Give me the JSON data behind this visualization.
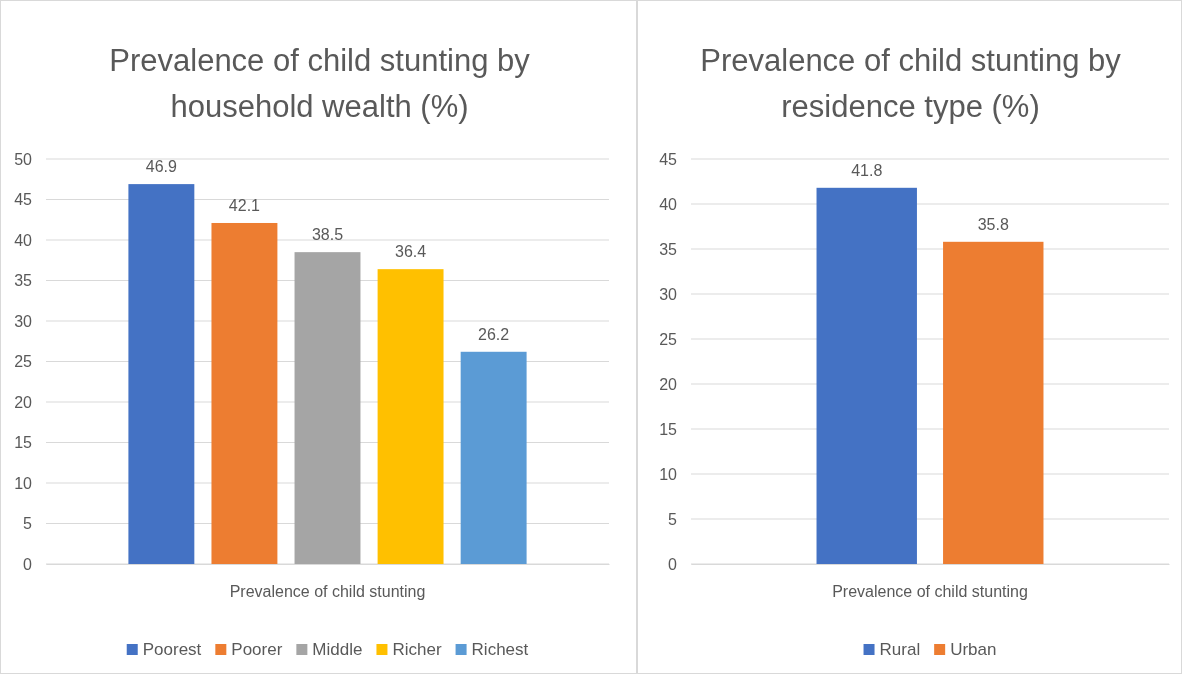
{
  "chart_data": [
    {
      "type": "bar",
      "title": "Prevalence of child stunting by household wealth (%)",
      "categories": [
        "Prevalence of child stunting"
      ],
      "series": [
        {
          "name": "Poorest",
          "color": "#4472c4",
          "values": [
            46.9
          ]
        },
        {
          "name": "Poorer",
          "color": "#ed7d31",
          "values": [
            42.1
          ]
        },
        {
          "name": "Middle",
          "color": "#a5a5a5",
          "values": [
            38.5
          ]
        },
        {
          "name": "Richer",
          "color": "#ffc000",
          "values": [
            36.4
          ]
        },
        {
          "name": "Richest",
          "color": "#5b9bd5",
          "values": [
            26.2
          ]
        }
      ],
      "ylim": [
        0,
        50
      ],
      "yticks": [
        0,
        5,
        10,
        15,
        20,
        25,
        30,
        35,
        40,
        45,
        50
      ],
      "grid": "y",
      "legend": "bottom",
      "data_labels": true
    },
    {
      "type": "bar",
      "title": "Prevalence of child stunting by residence type (%)",
      "categories": [
        "Prevalence of child stunting"
      ],
      "series": [
        {
          "name": "Rural",
          "color": "#4472c4",
          "values": [
            41.8
          ]
        },
        {
          "name": "Urban",
          "color": "#ed7d31",
          "values": [
            35.8
          ]
        }
      ],
      "ylim": [
        0,
        45
      ],
      "yticks": [
        0,
        5,
        10,
        15,
        20,
        25,
        30,
        35,
        40,
        45
      ],
      "grid": "y",
      "legend": "bottom",
      "data_labels": true
    }
  ]
}
